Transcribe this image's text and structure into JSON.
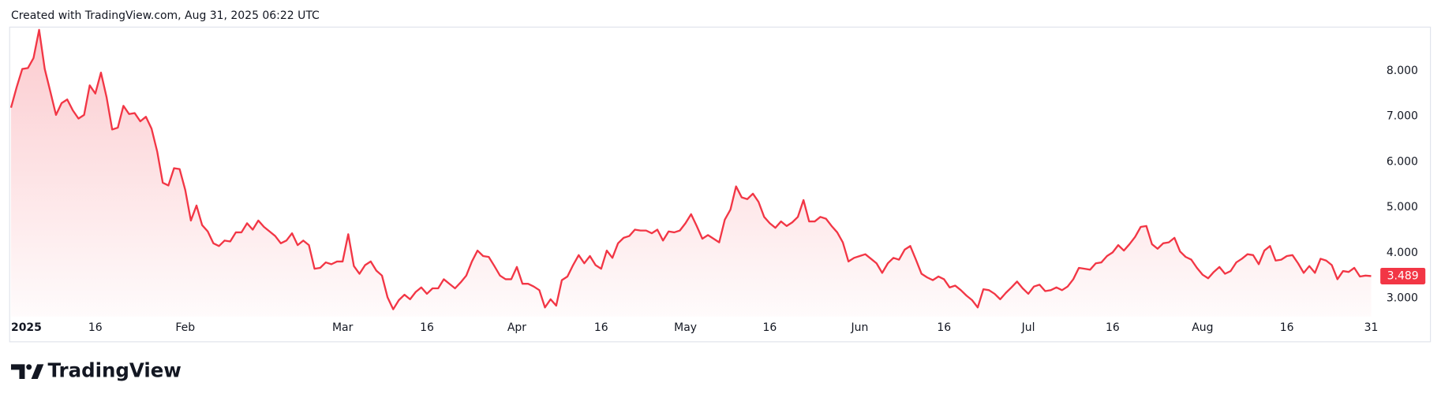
{
  "header": {
    "caption": "Created with TradingView.com, Aug 31, 2025 06:22 UTC"
  },
  "footer": {
    "logo": "TradingView"
  },
  "chart_data": {
    "type": "area",
    "x": [
      "2025-01-01",
      "2025-01-02",
      "2025-01-03",
      "2025-01-04",
      "2025-01-05",
      "2025-01-06",
      "2025-01-07",
      "2025-01-08",
      "2025-01-09",
      "2025-01-10",
      "2025-01-11",
      "2025-01-12",
      "2025-01-13",
      "2025-01-14",
      "2025-01-15",
      "2025-01-16",
      "2025-01-17",
      "2025-01-18",
      "2025-01-19",
      "2025-01-20",
      "2025-01-21",
      "2025-01-22",
      "2025-01-23",
      "2025-01-24",
      "2025-01-25",
      "2025-01-26",
      "2025-01-27",
      "2025-01-28",
      "2025-01-29",
      "2025-01-30",
      "2025-01-31",
      "2025-02-01",
      "2025-02-02",
      "2025-02-03",
      "2025-02-04",
      "2025-02-05",
      "2025-02-06",
      "2025-02-07",
      "2025-02-08",
      "2025-02-09",
      "2025-02-10",
      "2025-02-11",
      "2025-02-12",
      "2025-02-13",
      "2025-02-14",
      "2025-02-15",
      "2025-02-16",
      "2025-02-17",
      "2025-02-18",
      "2025-02-19",
      "2025-02-20",
      "2025-02-21",
      "2025-02-22",
      "2025-02-23",
      "2025-02-24",
      "2025-02-25",
      "2025-02-26",
      "2025-02-27",
      "2025-02-28",
      "2025-03-01",
      "2025-03-02",
      "2025-03-03",
      "2025-03-04",
      "2025-03-05",
      "2025-03-06",
      "2025-03-07",
      "2025-03-08",
      "2025-03-09",
      "2025-03-10",
      "2025-03-11",
      "2025-03-12",
      "2025-03-13",
      "2025-03-14",
      "2025-03-15",
      "2025-03-16",
      "2025-03-17",
      "2025-03-18",
      "2025-03-19",
      "2025-03-20",
      "2025-03-21",
      "2025-03-22",
      "2025-03-23",
      "2025-03-24",
      "2025-03-25",
      "2025-03-26",
      "2025-03-27",
      "2025-03-28",
      "2025-03-29",
      "2025-03-30",
      "2025-03-31",
      "2025-04-01",
      "2025-04-02",
      "2025-04-03",
      "2025-04-04",
      "2025-04-05",
      "2025-04-06",
      "2025-04-07",
      "2025-04-08",
      "2025-04-09",
      "2025-04-10",
      "2025-04-11",
      "2025-04-12",
      "2025-04-13",
      "2025-04-14",
      "2025-04-15",
      "2025-04-16",
      "2025-04-17",
      "2025-04-18",
      "2025-04-19",
      "2025-04-20",
      "2025-04-21",
      "2025-04-22",
      "2025-04-23",
      "2025-04-24",
      "2025-04-25",
      "2025-04-26",
      "2025-04-27",
      "2025-04-28",
      "2025-04-29",
      "2025-04-30",
      "2025-05-01",
      "2025-05-02",
      "2025-05-03",
      "2025-05-04",
      "2025-05-05",
      "2025-05-06",
      "2025-05-07",
      "2025-05-08",
      "2025-05-09",
      "2025-05-10",
      "2025-05-11",
      "2025-05-12",
      "2025-05-13",
      "2025-05-14",
      "2025-05-15",
      "2025-05-16",
      "2025-05-17",
      "2025-05-18",
      "2025-05-19",
      "2025-05-20",
      "2025-05-21",
      "2025-05-22",
      "2025-05-23",
      "2025-05-24",
      "2025-05-25",
      "2025-05-26",
      "2025-05-27",
      "2025-05-28",
      "2025-05-29",
      "2025-05-30",
      "2025-05-31",
      "2025-06-01",
      "2025-06-02",
      "2025-06-03",
      "2025-06-04",
      "2025-06-05",
      "2025-06-06",
      "2025-06-07",
      "2025-06-08",
      "2025-06-09",
      "2025-06-10",
      "2025-06-11",
      "2025-06-12",
      "2025-06-13",
      "2025-06-14",
      "2025-06-15",
      "2025-06-16",
      "2025-06-17",
      "2025-06-18",
      "2025-06-19",
      "2025-06-20",
      "2025-06-21",
      "2025-06-22",
      "2025-06-23",
      "2025-06-24",
      "2025-06-25",
      "2025-06-26",
      "2025-06-27",
      "2025-06-28",
      "2025-06-29",
      "2025-06-30",
      "2025-07-01",
      "2025-07-02",
      "2025-07-03",
      "2025-07-04",
      "2025-07-05",
      "2025-07-06",
      "2025-07-07",
      "2025-07-08",
      "2025-07-09",
      "2025-07-10",
      "2025-07-11",
      "2025-07-12",
      "2025-07-13",
      "2025-07-14",
      "2025-07-15",
      "2025-07-16",
      "2025-07-17",
      "2025-07-18",
      "2025-07-19",
      "2025-07-20",
      "2025-07-21",
      "2025-07-22",
      "2025-07-23",
      "2025-07-24",
      "2025-07-25",
      "2025-07-26",
      "2025-07-27",
      "2025-07-28",
      "2025-07-29",
      "2025-07-30",
      "2025-07-31",
      "2025-08-01",
      "2025-08-02",
      "2025-08-03",
      "2025-08-04",
      "2025-08-05",
      "2025-08-06",
      "2025-08-07",
      "2025-08-08",
      "2025-08-09",
      "2025-08-10",
      "2025-08-11",
      "2025-08-12",
      "2025-08-13",
      "2025-08-14",
      "2025-08-15",
      "2025-08-16",
      "2025-08-17",
      "2025-08-18",
      "2025-08-19",
      "2025-08-20",
      "2025-08-21",
      "2025-08-22",
      "2025-08-23",
      "2025-08-24",
      "2025-08-25",
      "2025-08-26",
      "2025-08-27",
      "2025-08-28",
      "2025-08-29",
      "2025-08-30",
      "2025-08-31"
    ],
    "series": [
      {
        "color": "#f23645",
        "values": [
          7.19,
          7.64,
          8.04,
          8.06,
          8.28,
          8.9,
          8.04,
          7.54,
          7.03,
          7.29,
          7.37,
          7.13,
          6.95,
          7.03,
          7.68,
          7.5,
          7.96,
          7.42,
          6.71,
          6.75,
          7.23,
          7.05,
          7.07,
          6.89,
          6.99,
          6.73,
          6.23,
          5.54,
          5.48,
          5.86,
          5.84,
          5.38,
          4.71,
          5.04,
          4.61,
          4.47,
          4.21,
          4.15,
          4.27,
          4.25,
          4.45,
          4.45,
          4.65,
          4.51,
          4.71,
          4.57,
          4.47,
          4.37,
          4.21,
          4.27,
          4.43,
          4.17,
          4.27,
          4.17,
          3.65,
          3.67,
          3.79,
          3.75,
          3.81,
          3.81,
          4.41,
          3.71,
          3.54,
          3.73,
          3.81,
          3.61,
          3.5,
          3.02,
          2.76,
          2.96,
          3.08,
          2.98,
          3.14,
          3.24,
          3.1,
          3.22,
          3.22,
          3.42,
          3.32,
          3.22,
          3.35,
          3.5,
          3.81,
          4.05,
          3.93,
          3.91,
          3.71,
          3.5,
          3.42,
          3.42,
          3.69,
          3.32,
          3.32,
          3.26,
          3.18,
          2.8,
          2.98,
          2.84,
          3.4,
          3.48,
          3.73,
          3.95,
          3.77,
          3.93,
          3.73,
          3.65,
          4.05,
          3.89,
          4.21,
          4.33,
          4.37,
          4.51,
          4.49,
          4.49,
          4.43,
          4.51,
          4.27,
          4.47,
          4.45,
          4.49,
          4.65,
          4.85,
          4.59,
          4.31,
          4.39,
          4.31,
          4.23,
          4.73,
          4.95,
          5.46,
          5.22,
          5.18,
          5.3,
          5.12,
          4.79,
          4.65,
          4.55,
          4.69,
          4.59,
          4.67,
          4.79,
          5.16,
          4.69,
          4.69,
          4.79,
          4.75,
          4.59,
          4.45,
          4.23,
          3.81,
          3.89,
          3.93,
          3.97,
          3.87,
          3.77,
          3.56,
          3.77,
          3.89,
          3.85,
          4.07,
          4.15,
          3.85,
          3.54,
          3.46,
          3.4,
          3.48,
          3.42,
          3.24,
          3.28,
          3.18,
          3.06,
          2.96,
          2.8,
          3.2,
          3.18,
          3.1,
          2.98,
          3.12,
          3.24,
          3.37,
          3.22,
          3.1,
          3.26,
          3.3,
          3.16,
          3.18,
          3.24,
          3.18,
          3.26,
          3.42,
          3.67,
          3.65,
          3.63,
          3.77,
          3.79,
          3.93,
          4.01,
          4.17,
          4.05,
          4.19,
          4.35,
          4.57,
          4.59,
          4.19,
          4.09,
          4.21,
          4.23,
          4.33,
          4.03,
          3.91,
          3.85,
          3.67,
          3.52,
          3.44,
          3.58,
          3.69,
          3.54,
          3.6,
          3.79,
          3.87,
          3.97,
          3.95,
          3.75,
          4.05,
          4.15,
          3.83,
          3.85,
          3.93,
          3.95,
          3.77,
          3.56,
          3.71,
          3.56,
          3.87,
          3.83,
          3.73,
          3.42,
          3.6,
          3.58,
          3.67,
          3.48,
          3.5,
          3.489
        ]
      }
    ],
    "xlim": [
      "2025-01-01",
      "2025-08-31"
    ],
    "xticks": [
      {
        "value": "2025-01-01",
        "label": "2025"
      },
      {
        "value": "2025-01-16",
        "label": "16"
      },
      {
        "value": "2025-02-01",
        "label": "Feb"
      },
      {
        "value": "2025-03-01",
        "label": "Mar"
      },
      {
        "value": "2025-03-16",
        "label": "16"
      },
      {
        "value": "2025-04-01",
        "label": "Apr"
      },
      {
        "value": "2025-04-16",
        "label": "16"
      },
      {
        "value": "2025-05-01",
        "label": "May"
      },
      {
        "value": "2025-05-16",
        "label": "16"
      },
      {
        "value": "2025-06-01",
        "label": "Jun"
      },
      {
        "value": "2025-06-16",
        "label": "16"
      },
      {
        "value": "2025-07-01",
        "label": "Jul"
      },
      {
        "value": "2025-07-16",
        "label": "16"
      },
      {
        "value": "2025-08-01",
        "label": "Aug"
      },
      {
        "value": "2025-08-16",
        "label": "16"
      },
      {
        "value": "2025-08-31",
        "label": "31"
      }
    ],
    "ylim": [
      2.6,
      8.97
    ],
    "yticks": [
      {
        "value": 3,
        "label": "3.000"
      },
      {
        "value": 4,
        "label": "4.000"
      },
      {
        "value": 5,
        "label": "5.000"
      },
      {
        "value": 6,
        "label": "6.000"
      },
      {
        "value": 7,
        "label": "7.000"
      },
      {
        "value": 8,
        "label": "8.000"
      }
    ],
    "grid": false
  }
}
